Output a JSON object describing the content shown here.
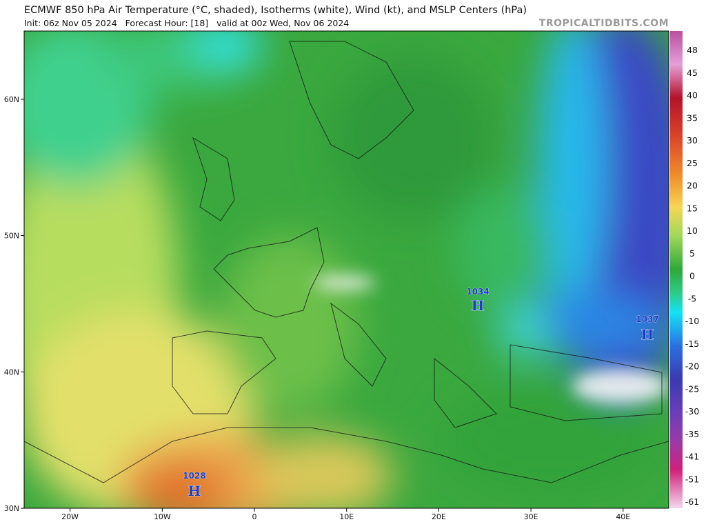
{
  "header": {
    "title": "ECMWF 850 hPa Air Temperature (°C, shaded), Isotherms (white), Wind (kt), and MSLP Centers (hPa)",
    "subtitle": "Init: 06z Nov 05 2024   Forecast Hour: [18]   valid at 00z Wed, Nov 06 2024",
    "watermark": "TROPICALTIDBITS.COM"
  },
  "map": {
    "lat_ticks": [
      {
        "value": 60,
        "label": "60N"
      },
      {
        "value": 50,
        "label": "50N"
      },
      {
        "value": 40,
        "label": "40N"
      },
      {
        "value": 30,
        "label": "30N"
      }
    ],
    "lon_ticks": [
      {
        "value": -20,
        "label": "20W"
      },
      {
        "value": -10,
        "label": "10W"
      },
      {
        "value": 0,
        "label": "0"
      },
      {
        "value": 10,
        "label": "10E"
      },
      {
        "value": 20,
        "label": "20E"
      },
      {
        "value": 30,
        "label": "30E"
      },
      {
        "value": 40,
        "label": "40E"
      }
    ],
    "pressure_centers": [
      {
        "pressure": "1034",
        "symbol": "H"
      },
      {
        "pressure": "1037",
        "symbol": "H"
      },
      {
        "pressure": "1028",
        "symbol": "H"
      }
    ]
  },
  "colorbar": {
    "labels": [
      "48",
      "45",
      "40",
      "35",
      "30",
      "25",
      "20",
      "15",
      "10",
      "5",
      "0",
      "-5",
      "-10",
      "-15",
      "-20",
      "-25",
      "-30",
      "-35",
      "-41",
      "-51",
      "-61"
    ]
  }
}
